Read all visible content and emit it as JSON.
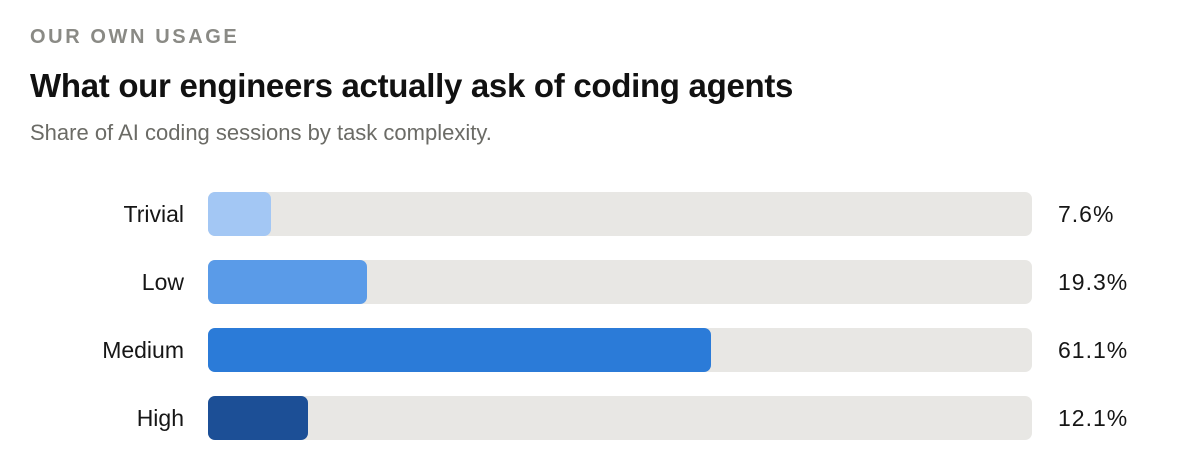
{
  "header": {
    "eyebrow": "OUR OWN USAGE",
    "title": "What our engineers actually ask of coding agents",
    "subtitle": "Share of AI coding sessions by task complexity."
  },
  "chart_data": {
    "type": "bar",
    "orientation": "horizontal",
    "title": "What our engineers actually ask of coding agents",
    "subtitle": "Share of AI coding sessions by task complexity.",
    "categories": [
      "Trivial",
      "Low",
      "Medium",
      "High"
    ],
    "values": [
      7.6,
      19.3,
      61.1,
      12.1
    ],
    "value_labels": [
      "7.6%",
      "19.3%",
      "61.1%",
      "12.1%"
    ],
    "unit": "%",
    "xlim": [
      0,
      100
    ],
    "grid": false,
    "legend": "none",
    "colors": [
      "#a3c7f4",
      "#5a9be8",
      "#2b7bd8",
      "#1c4f96"
    ],
    "track_color": "#e8e7e4"
  }
}
